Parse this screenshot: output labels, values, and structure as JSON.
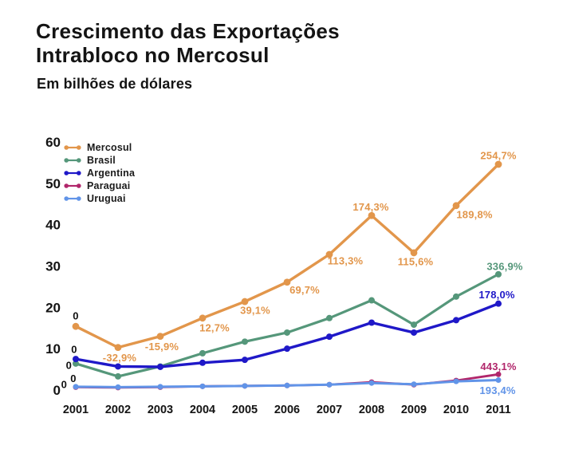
{
  "title": {
    "lines": [
      "Crescimento das Exportações",
      "Intrabloco no Mercosul"
    ],
    "subtitle": "Em bilhões de dólares"
  },
  "chart_data": {
    "type": "line",
    "title": "Crescimento das Exportações Intrabloco no Mercosul",
    "subtitle": "Em bilhões de dólares",
    "x": [
      "2001",
      "2002",
      "2003",
      "2004",
      "2005",
      "2006",
      "2007",
      "2008",
      "2009",
      "2010",
      "2011"
    ],
    "xlabel": "",
    "ylabel": "",
    "ylim": [
      0,
      60
    ],
    "yticks": [
      "0",
      "10",
      "20",
      "30",
      "40",
      "50",
      "60"
    ],
    "grid": false,
    "legend_position": "top-left-inside",
    "series": [
      {
        "name": "Mercosul",
        "color": "#E2964B",
        "line_width": 3.4,
        "dot_radius": 4.4,
        "values": [
          15.4,
          10.3,
          13.0,
          17.4,
          21.4,
          26.1,
          32.8,
          42.2,
          33.2,
          44.6,
          54.6
        ],
        "labels": [
          {
            "i": 0,
            "text": "0",
            "color": "#111111",
            "dx": 0,
            "dy": -13
          },
          {
            "i": 1,
            "text": "-32,9%",
            "dx": 2,
            "dy": 13
          },
          {
            "i": 2,
            "text": "-15,9%",
            "dx": 2,
            "dy": 13
          },
          {
            "i": 3,
            "text": "12,7%",
            "dx": 15,
            "dy": 12
          },
          {
            "i": 4,
            "text": "39,1%",
            "dx": 13,
            "dy": 11
          },
          {
            "i": 5,
            "text": "69,7%",
            "dx": 22,
            "dy": 10
          },
          {
            "i": 6,
            "text": "113,3%",
            "dx": 20,
            "dy": 8
          },
          {
            "i": 7,
            "text": "174,3%",
            "dx": -1,
            "dy": -11
          },
          {
            "i": 8,
            "text": "115,6%",
            "dx": 2,
            "dy": 11
          },
          {
            "i": 9,
            "text": "189,8%",
            "dx": 23,
            "dy": 11
          },
          {
            "i": 10,
            "text": "254,7%",
            "dx": 0,
            "dy": -11
          }
        ]
      },
      {
        "name": "Brasil",
        "color": "#55977A",
        "line_width": 3.2,
        "dot_radius": 4,
        "values": [
          6.4,
          3.3,
          5.7,
          8.9,
          11.7,
          13.9,
          17.4,
          21.7,
          15.8,
          22.6,
          28.0
        ],
        "labels": [
          {
            "i": 0,
            "text": "0",
            "color": "#111111",
            "dx": -5,
            "dy": 2,
            "anchor": "end"
          },
          {
            "i": 10,
            "text": "336,9%",
            "dx": 8,
            "dy": -10
          }
        ]
      },
      {
        "name": "Argentina",
        "color": "#1F18C8",
        "line_width": 3.4,
        "dot_radius": 4,
        "values": [
          7.5,
          5.7,
          5.6,
          6.6,
          7.3,
          10.0,
          12.9,
          16.3,
          13.9,
          16.9,
          20.9
        ],
        "labels": [
          {
            "i": 0,
            "text": "0",
            "color": "#111111",
            "dx": -2,
            "dy": -12
          },
          {
            "i": 10,
            "text": "178,0%",
            "dx": -2,
            "dy": -11
          }
        ]
      },
      {
        "name": "Paraguai",
        "color": "#B1266B",
        "line_width": 2.8,
        "dot_radius": 3.5,
        "values": [
          0.7,
          0.6,
          0.7,
          0.9,
          1.0,
          1.1,
          1.3,
          1.9,
          1.3,
          2.3,
          3.8
        ],
        "labels": [
          {
            "i": 0,
            "text": "0",
            "color": "#111111",
            "dx": -3,
            "dy": -11
          },
          {
            "i": 10,
            "text": "443,1%",
            "dx": 0,
            "dy": -10
          }
        ]
      },
      {
        "name": "Uruguai",
        "color": "#6194E8",
        "line_width": 3,
        "dot_radius": 3.5,
        "values": [
          0.8,
          0.7,
          0.8,
          0.9,
          1.0,
          1.1,
          1.3,
          1.7,
          1.4,
          2.1,
          2.4
        ],
        "labels": [
          {
            "i": 0,
            "text": "0",
            "color": "#111111",
            "dx": -11,
            "dy": -3,
            "anchor": "end"
          },
          {
            "i": 10,
            "text": "193,4%",
            "dx": -1,
            "dy": 13
          }
        ]
      }
    ]
  }
}
